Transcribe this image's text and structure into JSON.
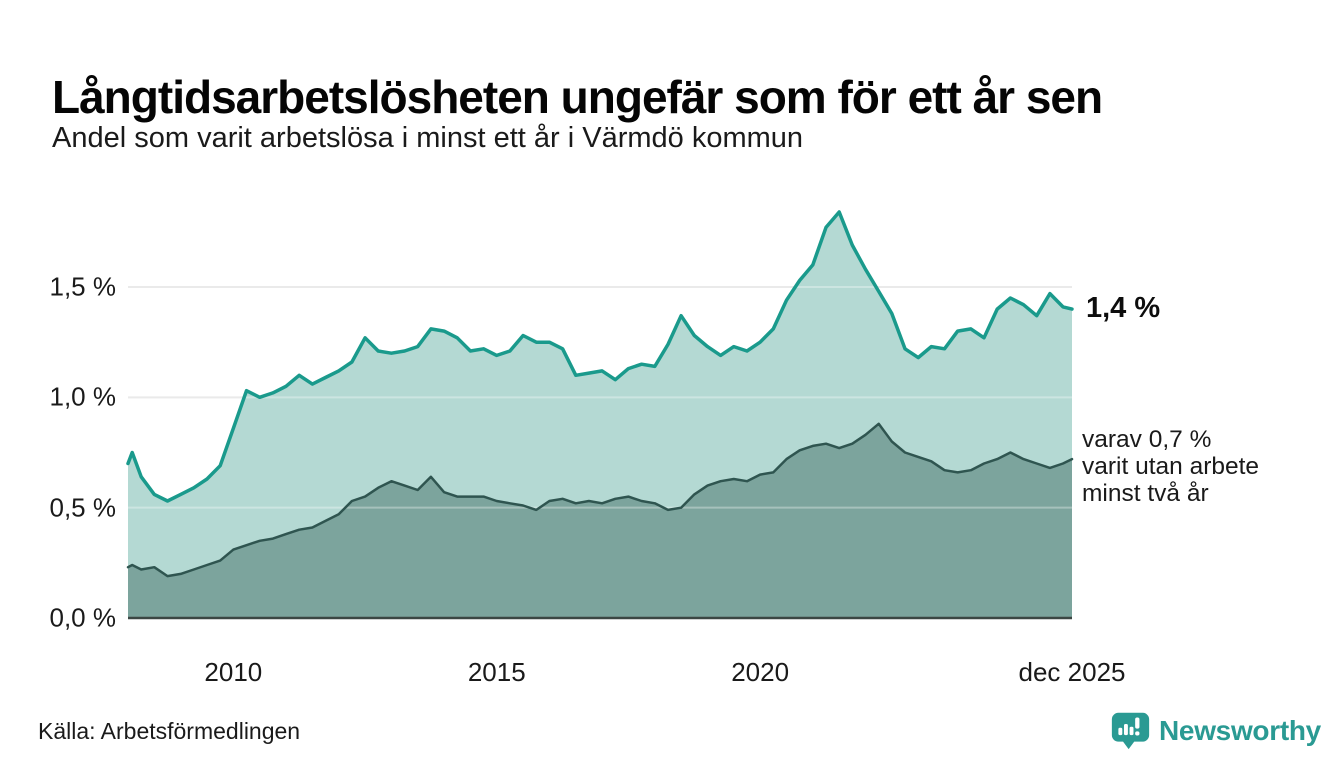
{
  "chart_data": {
    "type": "area",
    "title": "Långtidsarbetslösheten ungefär som för ett år sen",
    "subtitle": "Andel som varit arbetslösa i minst ett år i Värmdö kommun",
    "unit": "%",
    "grid": "horizontal",
    "legend_position": "direct-labels-right",
    "ylim": [
      0,
      1.9
    ],
    "x": [
      2008.0,
      2008.08,
      2008.25,
      2008.5,
      2008.75,
      2009.0,
      2009.25,
      2009.5,
      2009.75,
      2010.0,
      2010.25,
      2010.5,
      2010.75,
      2011.0,
      2011.25,
      2011.5,
      2011.75,
      2012.0,
      2012.25,
      2012.5,
      2012.75,
      2013.0,
      2013.25,
      2013.5,
      2013.75,
      2014.0,
      2014.25,
      2014.5,
      2014.75,
      2015.0,
      2015.25,
      2015.5,
      2015.75,
      2016.0,
      2016.25,
      2016.5,
      2016.75,
      2017.0,
      2017.25,
      2017.5,
      2017.75,
      2018.0,
      2018.25,
      2018.5,
      2018.75,
      2019.0,
      2019.25,
      2019.5,
      2019.75,
      2020.0,
      2020.25,
      2020.5,
      2020.75,
      2021.0,
      2021.25,
      2021.5,
      2021.75,
      2022.0,
      2022.25,
      2022.5,
      2022.75,
      2023.0,
      2023.25,
      2023.5,
      2023.75,
      2024.0,
      2024.25,
      2024.5,
      2024.75,
      2025.0,
      2025.25,
      2025.5,
      2025.75,
      2025.92
    ],
    "series": [
      {
        "name": "arbetslösa minst ett år",
        "line_color": "#1a9a8c",
        "fill_color": "#b4d9d3",
        "line_width": 3.5,
        "latest_value": "1,4 %",
        "values": [
          0.7,
          0.75,
          0.64,
          0.56,
          0.53,
          0.56,
          0.59,
          0.63,
          0.69,
          0.86,
          1.03,
          1.0,
          1.02,
          1.05,
          1.1,
          1.06,
          1.09,
          1.12,
          1.16,
          1.27,
          1.21,
          1.2,
          1.21,
          1.23,
          1.31,
          1.3,
          1.27,
          1.21,
          1.22,
          1.19,
          1.21,
          1.28,
          1.25,
          1.25,
          1.22,
          1.1,
          1.11,
          1.12,
          1.08,
          1.13,
          1.15,
          1.14,
          1.24,
          1.37,
          1.28,
          1.23,
          1.19,
          1.23,
          1.21,
          1.25,
          1.31,
          1.44,
          1.53,
          1.6,
          1.77,
          1.84,
          1.69,
          1.58,
          1.48,
          1.38,
          1.22,
          1.18,
          1.23,
          1.22,
          1.3,
          1.31,
          1.27,
          1.4,
          1.45,
          1.42,
          1.37,
          1.47,
          1.41,
          1.4
        ]
      },
      {
        "name": "varav utan arbete minst två år",
        "line_color": "#2f5550",
        "fill_color": "#7ca49d",
        "line_width": 2.5,
        "latest_value": "0,7 %",
        "values": [
          0.23,
          0.24,
          0.22,
          0.23,
          0.19,
          0.2,
          0.22,
          0.24,
          0.26,
          0.31,
          0.33,
          0.35,
          0.36,
          0.38,
          0.4,
          0.41,
          0.44,
          0.47,
          0.53,
          0.55,
          0.59,
          0.62,
          0.6,
          0.58,
          0.64,
          0.57,
          0.55,
          0.55,
          0.55,
          0.53,
          0.52,
          0.51,
          0.49,
          0.53,
          0.54,
          0.52,
          0.53,
          0.52,
          0.54,
          0.55,
          0.53,
          0.52,
          0.49,
          0.5,
          0.56,
          0.6,
          0.62,
          0.63,
          0.62,
          0.65,
          0.66,
          0.72,
          0.76,
          0.78,
          0.79,
          0.77,
          0.79,
          0.83,
          0.88,
          0.8,
          0.75,
          0.73,
          0.71,
          0.67,
          0.66,
          0.67,
          0.7,
          0.72,
          0.75,
          0.72,
          0.7,
          0.68,
          0.7,
          0.72
        ]
      }
    ],
    "yticks": [
      {
        "value": 0.0,
        "label": "0,0 %"
      },
      {
        "value": 0.5,
        "label": "0,5 %"
      },
      {
        "value": 1.0,
        "label": "1,0 %"
      },
      {
        "value": 1.5,
        "label": "1,5 %"
      }
    ],
    "xticks": [
      {
        "value": 2010,
        "label": "2010"
      },
      {
        "value": 2015,
        "label": "2015"
      },
      {
        "value": 2020,
        "label": "2020"
      },
      {
        "value": 2025.92,
        "label": "dec 2025"
      }
    ]
  },
  "annotations": {
    "latest_value_label": "1,4 %",
    "secondary_lines": [
      "varav 0,7 %",
      "varit utan arbete",
      "minst två år"
    ]
  },
  "footer": {
    "source": "Källa: Arbetsförmedlingen",
    "brand": "Newsworthy"
  },
  "colors": {
    "background": "#ffffff",
    "gridline": "#e1e1e1",
    "baseline": "#3b4643",
    "text": "#1a1a1a",
    "brand_teal": "#2a9a93"
  }
}
